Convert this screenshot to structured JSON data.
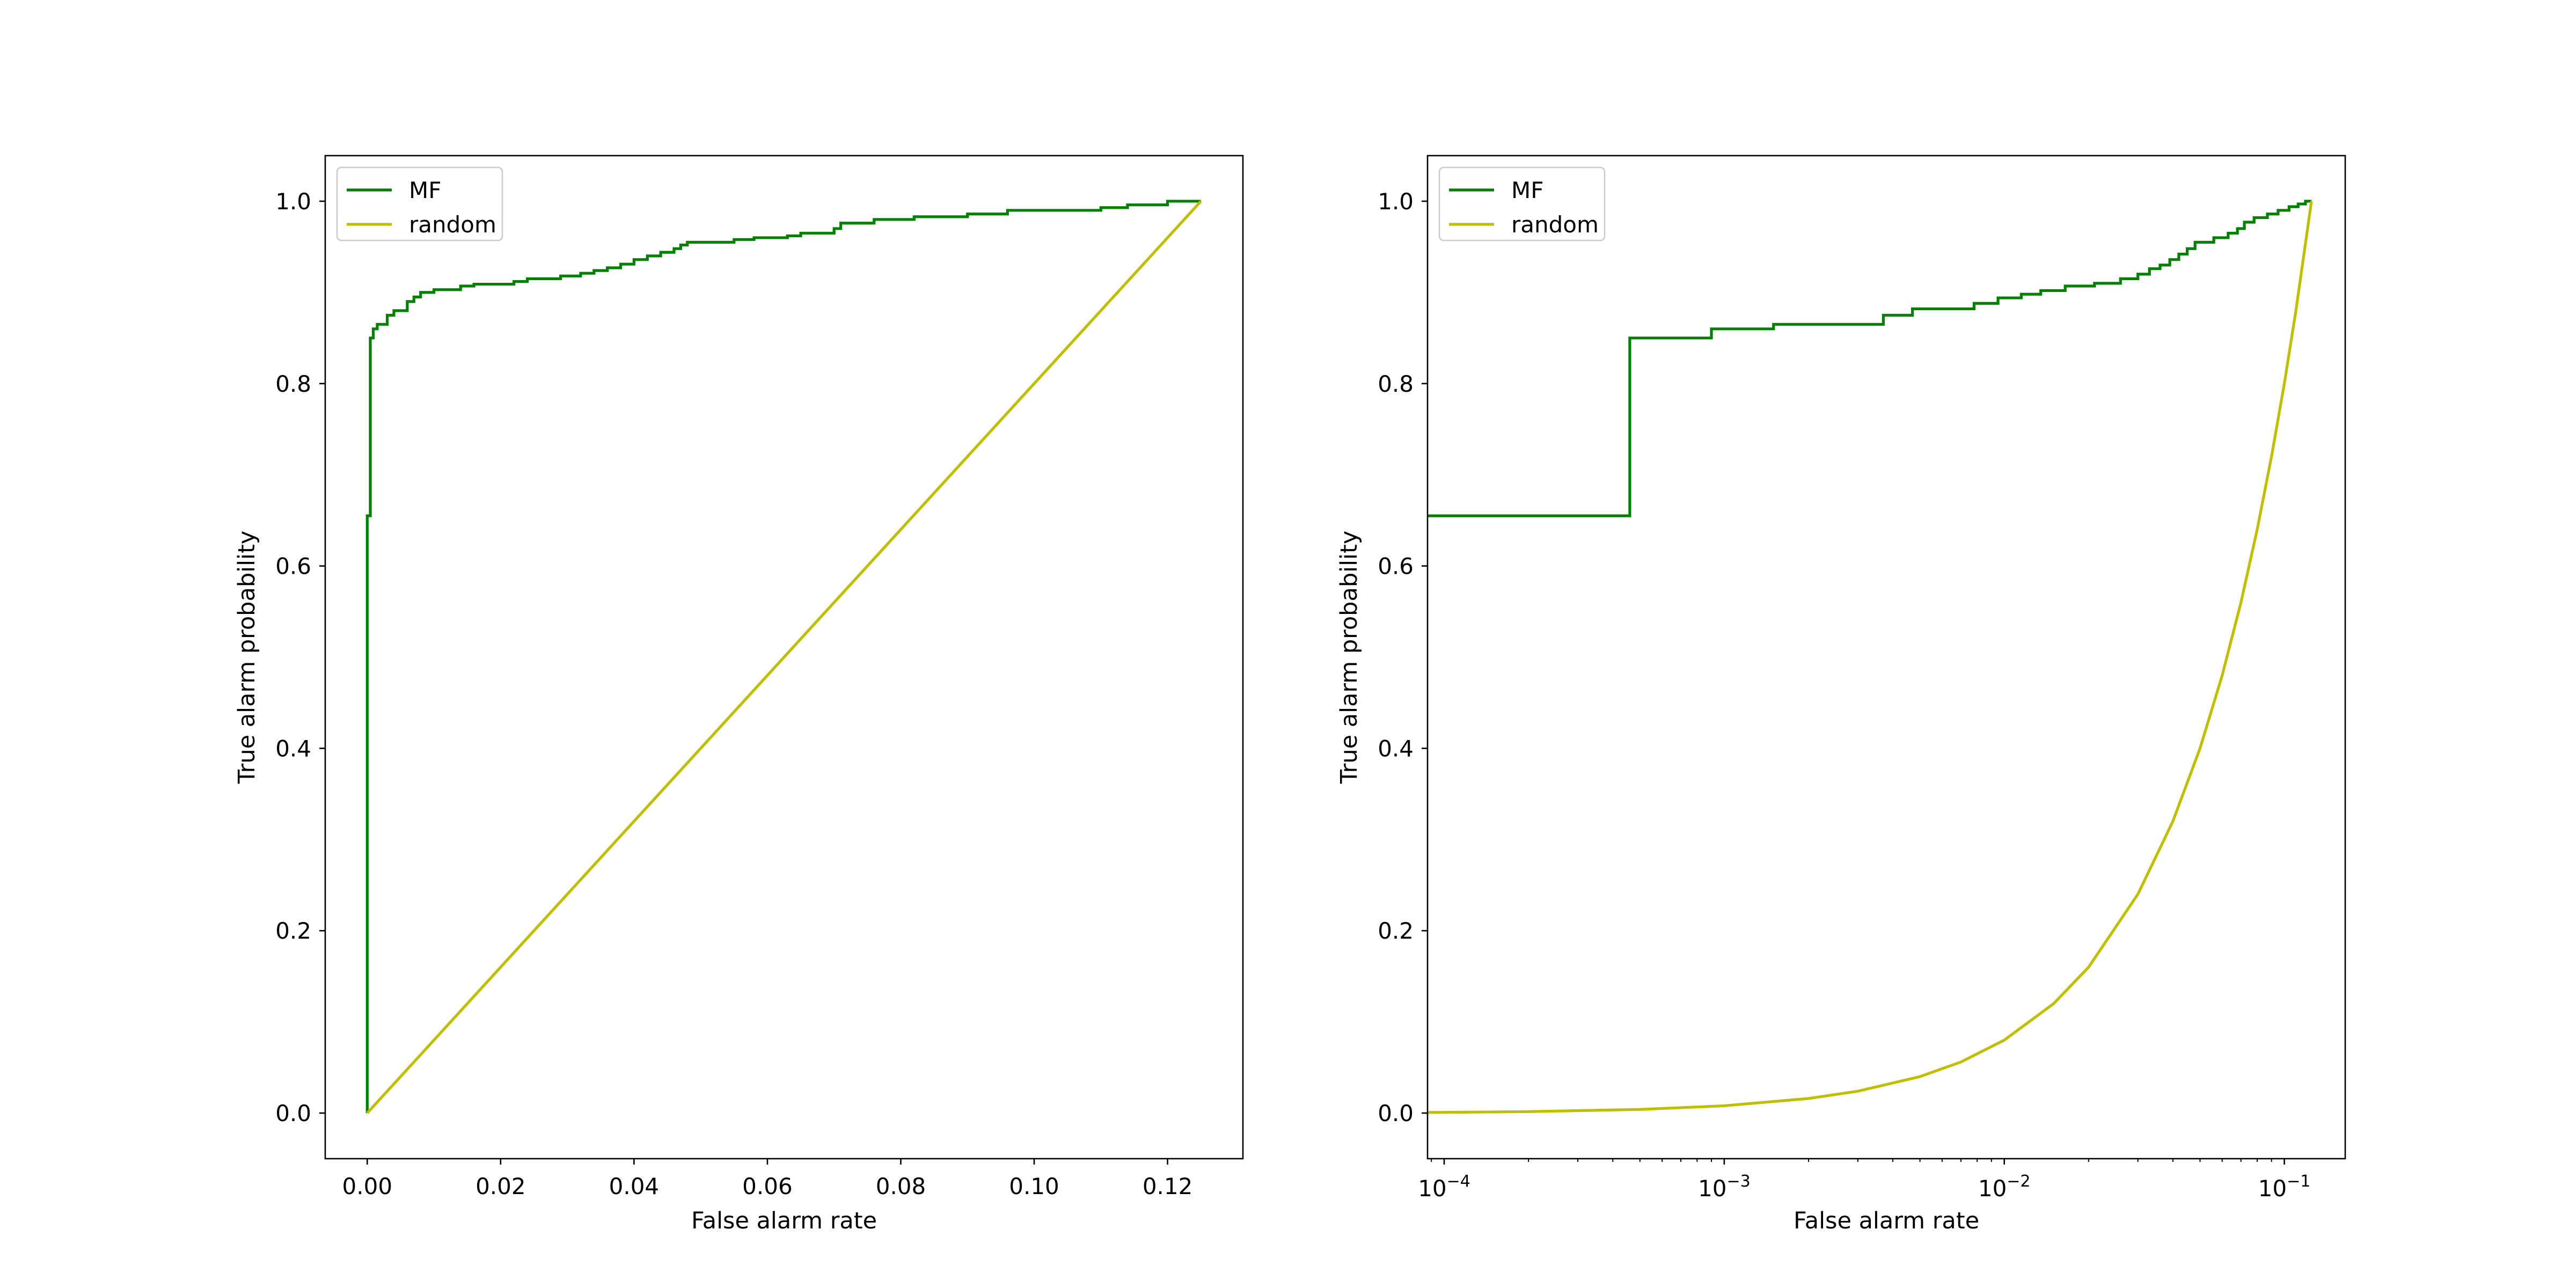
{
  "chart_data": [
    {
      "type": "line",
      "title": "",
      "xlabel": "False alarm rate",
      "ylabel": "True alarm probability",
      "xscale": "linear",
      "xlim": [
        -0.0063,
        0.1313
      ],
      "ylim": [
        -0.05,
        1.05
      ],
      "xticks": [
        0.0,
        0.02,
        0.04,
        0.06,
        0.08,
        0.1,
        0.12
      ],
      "xtick_labels": [
        "0.00",
        "0.02",
        "0.04",
        "0.06",
        "0.08",
        "0.10",
        "0.12"
      ],
      "yticks": [
        0.0,
        0.2,
        0.4,
        0.6,
        0.8,
        1.0
      ],
      "ytick_labels": [
        "0.0",
        "0.2",
        "0.4",
        "0.6",
        "0.8",
        "1.0"
      ],
      "grid": false,
      "legend": "upper left",
      "series": [
        {
          "name": "MF",
          "color": "#008000",
          "step": true,
          "points": [
            [
              0.0,
              0.0
            ],
            [
              0.0,
              0.655
            ],
            [
              0.00046,
              0.655
            ],
            [
              0.00046,
              0.85
            ],
            [
              0.0009,
              0.85
            ],
            [
              0.0009,
              0.86
            ],
            [
              0.0015,
              0.86
            ],
            [
              0.0015,
              0.865
            ],
            [
              0.003,
              0.865
            ],
            [
              0.003,
              0.875
            ],
            [
              0.004,
              0.875
            ],
            [
              0.004,
              0.88
            ],
            [
              0.006,
              0.88
            ],
            [
              0.006,
              0.89
            ],
            [
              0.007,
              0.89
            ],
            [
              0.007,
              0.895
            ],
            [
              0.008,
              0.895
            ],
            [
              0.008,
              0.9
            ],
            [
              0.01,
              0.9
            ],
            [
              0.01,
              0.903
            ],
            [
              0.014,
              0.903
            ],
            [
              0.014,
              0.907
            ],
            [
              0.016,
              0.907
            ],
            [
              0.016,
              0.909
            ],
            [
              0.022,
              0.909
            ],
            [
              0.022,
              0.912
            ],
            [
              0.024,
              0.912
            ],
            [
              0.024,
              0.915
            ],
            [
              0.029,
              0.915
            ],
            [
              0.029,
              0.918
            ],
            [
              0.032,
              0.918
            ],
            [
              0.032,
              0.921
            ],
            [
              0.034,
              0.921
            ],
            [
              0.034,
              0.924
            ],
            [
              0.036,
              0.924
            ],
            [
              0.036,
              0.927
            ],
            [
              0.038,
              0.927
            ],
            [
              0.038,
              0.931
            ],
            [
              0.04,
              0.931
            ],
            [
              0.04,
              0.936
            ],
            [
              0.042,
              0.936
            ],
            [
              0.042,
              0.94
            ],
            [
              0.044,
              0.94
            ],
            [
              0.044,
              0.944
            ],
            [
              0.046,
              0.944
            ],
            [
              0.046,
              0.948
            ],
            [
              0.047,
              0.948
            ],
            [
              0.047,
              0.952
            ],
            [
              0.048,
              0.952
            ],
            [
              0.048,
              0.955
            ],
            [
              0.055,
              0.955
            ],
            [
              0.055,
              0.958
            ],
            [
              0.058,
              0.958
            ],
            [
              0.058,
              0.96
            ],
            [
              0.063,
              0.96
            ],
            [
              0.063,
              0.962
            ],
            [
              0.065,
              0.962
            ],
            [
              0.065,
              0.965
            ],
            [
              0.07,
              0.965
            ],
            [
              0.07,
              0.97
            ],
            [
              0.071,
              0.97
            ],
            [
              0.071,
              0.976
            ],
            [
              0.076,
              0.976
            ],
            [
              0.076,
              0.98
            ],
            [
              0.082,
              0.98
            ],
            [
              0.082,
              0.983
            ],
            [
              0.09,
              0.983
            ],
            [
              0.09,
              0.986
            ],
            [
              0.096,
              0.986
            ],
            [
              0.096,
              0.99
            ],
            [
              0.11,
              0.99
            ],
            [
              0.11,
              0.993
            ],
            [
              0.114,
              0.993
            ],
            [
              0.114,
              0.996
            ],
            [
              0.12,
              0.996
            ],
            [
              0.12,
              1.0
            ],
            [
              0.125,
              1.0
            ]
          ]
        },
        {
          "name": "random",
          "color": "#BFBF00",
          "step": false,
          "points": [
            [
              0.0,
              0.0
            ],
            [
              0.125,
              1.0
            ]
          ]
        }
      ]
    },
    {
      "type": "line",
      "title": "",
      "xlabel": "False alarm rate",
      "ylabel": "True alarm probability",
      "xscale": "log",
      "xlim": [
        8.72e-05,
        0.165
      ],
      "ylim": [
        -0.05,
        1.05
      ],
      "xticks": [
        0.0001,
        0.001,
        0.01,
        0.1
      ],
      "xtick_labels": [
        {
          "base": "10",
          "exp": "−4"
        },
        {
          "base": "10",
          "exp": "−3"
        },
        {
          "base": "10",
          "exp": "−2"
        },
        {
          "base": "10",
          "exp": "−1"
        }
      ],
      "yticks": [
        0.0,
        0.2,
        0.4,
        0.6,
        0.8,
        1.0
      ],
      "ytick_labels": [
        "0.0",
        "0.2",
        "0.4",
        "0.6",
        "0.8",
        "1.0"
      ],
      "grid": false,
      "legend": "upper left",
      "series": [
        {
          "name": "MF",
          "color": "#008000",
          "step": true,
          "points": [
            [
              8.72e-05,
              0.655
            ],
            [
              0.00046,
              0.655
            ],
            [
              0.00046,
              0.85
            ],
            [
              0.0009,
              0.85
            ],
            [
              0.0009,
              0.86
            ],
            [
              0.0015,
              0.86
            ],
            [
              0.0015,
              0.865
            ],
            [
              0.0037,
              0.865
            ],
            [
              0.0037,
              0.875
            ],
            [
              0.0047,
              0.875
            ],
            [
              0.0047,
              0.882
            ],
            [
              0.0078,
              0.882
            ],
            [
              0.0078,
              0.888
            ],
            [
              0.0095,
              0.888
            ],
            [
              0.0095,
              0.894
            ],
            [
              0.0115,
              0.894
            ],
            [
              0.0115,
              0.898
            ],
            [
              0.0135,
              0.898
            ],
            [
              0.0135,
              0.902
            ],
            [
              0.0165,
              0.902
            ],
            [
              0.0165,
              0.907
            ],
            [
              0.021,
              0.907
            ],
            [
              0.021,
              0.91
            ],
            [
              0.026,
              0.91
            ],
            [
              0.026,
              0.915
            ],
            [
              0.03,
              0.915
            ],
            [
              0.03,
              0.92
            ],
            [
              0.033,
              0.92
            ],
            [
              0.033,
              0.926
            ],
            [
              0.036,
              0.926
            ],
            [
              0.036,
              0.93
            ],
            [
              0.039,
              0.93
            ],
            [
              0.039,
              0.936
            ],
            [
              0.042,
              0.936
            ],
            [
              0.042,
              0.942
            ],
            [
              0.045,
              0.942
            ],
            [
              0.045,
              0.948
            ],
            [
              0.048,
              0.948
            ],
            [
              0.048,
              0.955
            ],
            [
              0.056,
              0.955
            ],
            [
              0.056,
              0.96
            ],
            [
              0.063,
              0.96
            ],
            [
              0.063,
              0.965
            ],
            [
              0.068,
              0.965
            ],
            [
              0.068,
              0.97
            ],
            [
              0.072,
              0.97
            ],
            [
              0.072,
              0.977
            ],
            [
              0.078,
              0.977
            ],
            [
              0.078,
              0.982
            ],
            [
              0.087,
              0.982
            ],
            [
              0.087,
              0.986
            ],
            [
              0.095,
              0.986
            ],
            [
              0.095,
              0.99
            ],
            [
              0.104,
              0.99
            ],
            [
              0.104,
              0.994
            ],
            [
              0.112,
              0.994
            ],
            [
              0.112,
              0.997
            ],
            [
              0.119,
              0.997
            ],
            [
              0.119,
              1.0
            ],
            [
              0.125,
              1.0
            ]
          ]
        },
        {
          "name": "random",
          "color": "#BFBF00",
          "step": false,
          "points": [
            [
              8.72e-05,
              0.0007
            ],
            [
              0.0001,
              0.0008
            ],
            [
              0.0002,
              0.0016
            ],
            [
              0.0005,
              0.004
            ],
            [
              0.001,
              0.008
            ],
            [
              0.002,
              0.016
            ],
            [
              0.003,
              0.024
            ],
            [
              0.005,
              0.04
            ],
            [
              0.007,
              0.056
            ],
            [
              0.01,
              0.08
            ],
            [
              0.015,
              0.12
            ],
            [
              0.02,
              0.16
            ],
            [
              0.03,
              0.24
            ],
            [
              0.04,
              0.32
            ],
            [
              0.05,
              0.4
            ],
            [
              0.06,
              0.48
            ],
            [
              0.07,
              0.56
            ],
            [
              0.08,
              0.64
            ],
            [
              0.09,
              0.72
            ],
            [
              0.1,
              0.8
            ],
            [
              0.11,
              0.88
            ],
            [
              0.125,
              1.0
            ]
          ]
        }
      ]
    }
  ]
}
